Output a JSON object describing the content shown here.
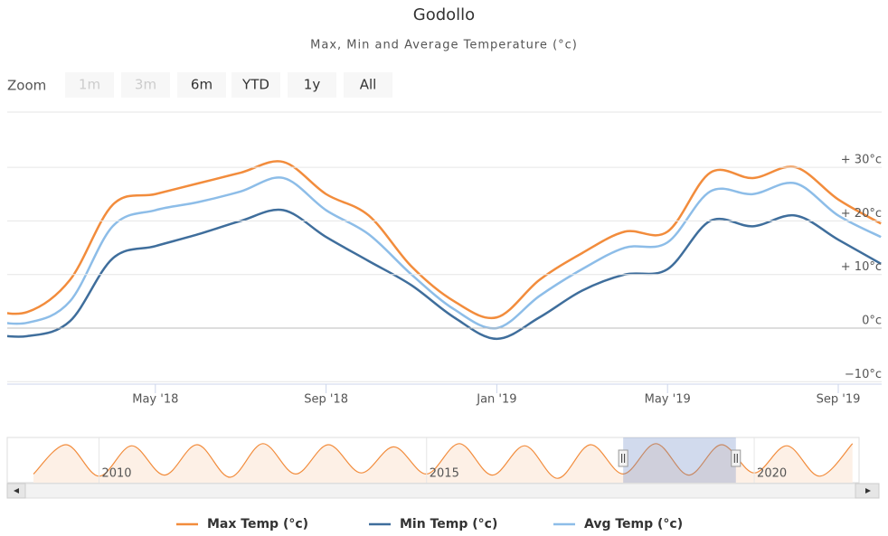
{
  "chart_data": {
    "type": "line",
    "title": "Godollo",
    "subtitle": "Max, Min and Average Temperature (°c)",
    "zoom": {
      "label": "Zoom",
      "buttons": [
        "1m",
        "3m",
        "6m",
        "YTD",
        "1y",
        "All"
      ],
      "disabled": [
        "1m",
        "3m"
      ]
    },
    "x": [
      "2018-01",
      "2018-02",
      "2018-03",
      "2018-04",
      "2018-05",
      "2018-06",
      "2018-07",
      "2018-08",
      "2018-09",
      "2018-10",
      "2018-11",
      "2018-12",
      "2019-01",
      "2019-02",
      "2019-03",
      "2019-04",
      "2019-05",
      "2019-06",
      "2019-07",
      "2019-08",
      "2019-09",
      "2019-10"
    ],
    "xticks": [
      {
        "value": "2018-05",
        "label": "May '18"
      },
      {
        "value": "2018-09",
        "label": "Sep '18"
      },
      {
        "value": "2019-01",
        "label": "Jan '19"
      },
      {
        "value": "2019-05",
        "label": "May '19"
      },
      {
        "value": "2019-09",
        "label": "Sep '19"
      }
    ],
    "ylim": [
      -10,
      40
    ],
    "yticks": [
      {
        "value": -10,
        "label": "−10°c"
      },
      {
        "value": 0,
        "label": "0°c"
      },
      {
        "value": 10,
        "label": "+ 10°c"
      },
      {
        "value": 20,
        "label": "+ 20°c"
      },
      {
        "value": 30,
        "label": "+ 30°c"
      }
    ],
    "grid": true,
    "series": [
      {
        "name": "Max Temp (°c)",
        "color": "#f28c3c",
        "values": [
          3.5,
          3,
          9,
          23,
          25,
          27,
          29,
          31,
          25,
          21,
          11.5,
          5,
          2,
          9,
          14,
          18,
          18,
          29,
          28,
          30,
          24,
          19.5
        ]
      },
      {
        "name": "Min Temp (°c)",
        "color": "#3f6e9c",
        "values": [
          -1,
          -1.5,
          1.3,
          13,
          15.3,
          17.5,
          20,
          22,
          17,
          12.5,
          8,
          2,
          -2,
          2,
          7,
          10,
          11,
          20,
          19,
          21,
          16.5,
          12
        ]
      },
      {
        "name": "Avg Temp (°c)",
        "color": "#8dbde8",
        "values": [
          1.5,
          1,
          5,
          19,
          22,
          23.5,
          25.5,
          28,
          22,
          17.5,
          10,
          3.5,
          0,
          6,
          11,
          15,
          16,
          25.5,
          25,
          27,
          21,
          17
        ]
      }
    ],
    "navigator": {
      "x": [
        2009.0,
        2009.5,
        2010.0,
        2010.5,
        2011.0,
        2011.5,
        2012.0,
        2012.5,
        2013.0,
        2013.5,
        2014.0,
        2014.5,
        2015.0,
        2015.5,
        2016.0,
        2016.5,
        2017.0,
        2017.5,
        2018.0,
        2018.5,
        2019.0,
        2019.5,
        2020.0,
        2020.5,
        2021.0,
        2021.5
      ],
      "values": [
        3,
        30,
        1,
        29,
        2,
        30,
        0,
        31,
        3,
        30,
        4,
        28,
        3,
        31,
        2,
        29,
        -1,
        30,
        3,
        31,
        2,
        30,
        4,
        29,
        1,
        31
      ],
      "xlim": [
        2008.6,
        2021.6
      ],
      "ticks": [
        2010,
        2015,
        2020
      ],
      "selection": [
        2018.0,
        2019.72
      ]
    }
  }
}
